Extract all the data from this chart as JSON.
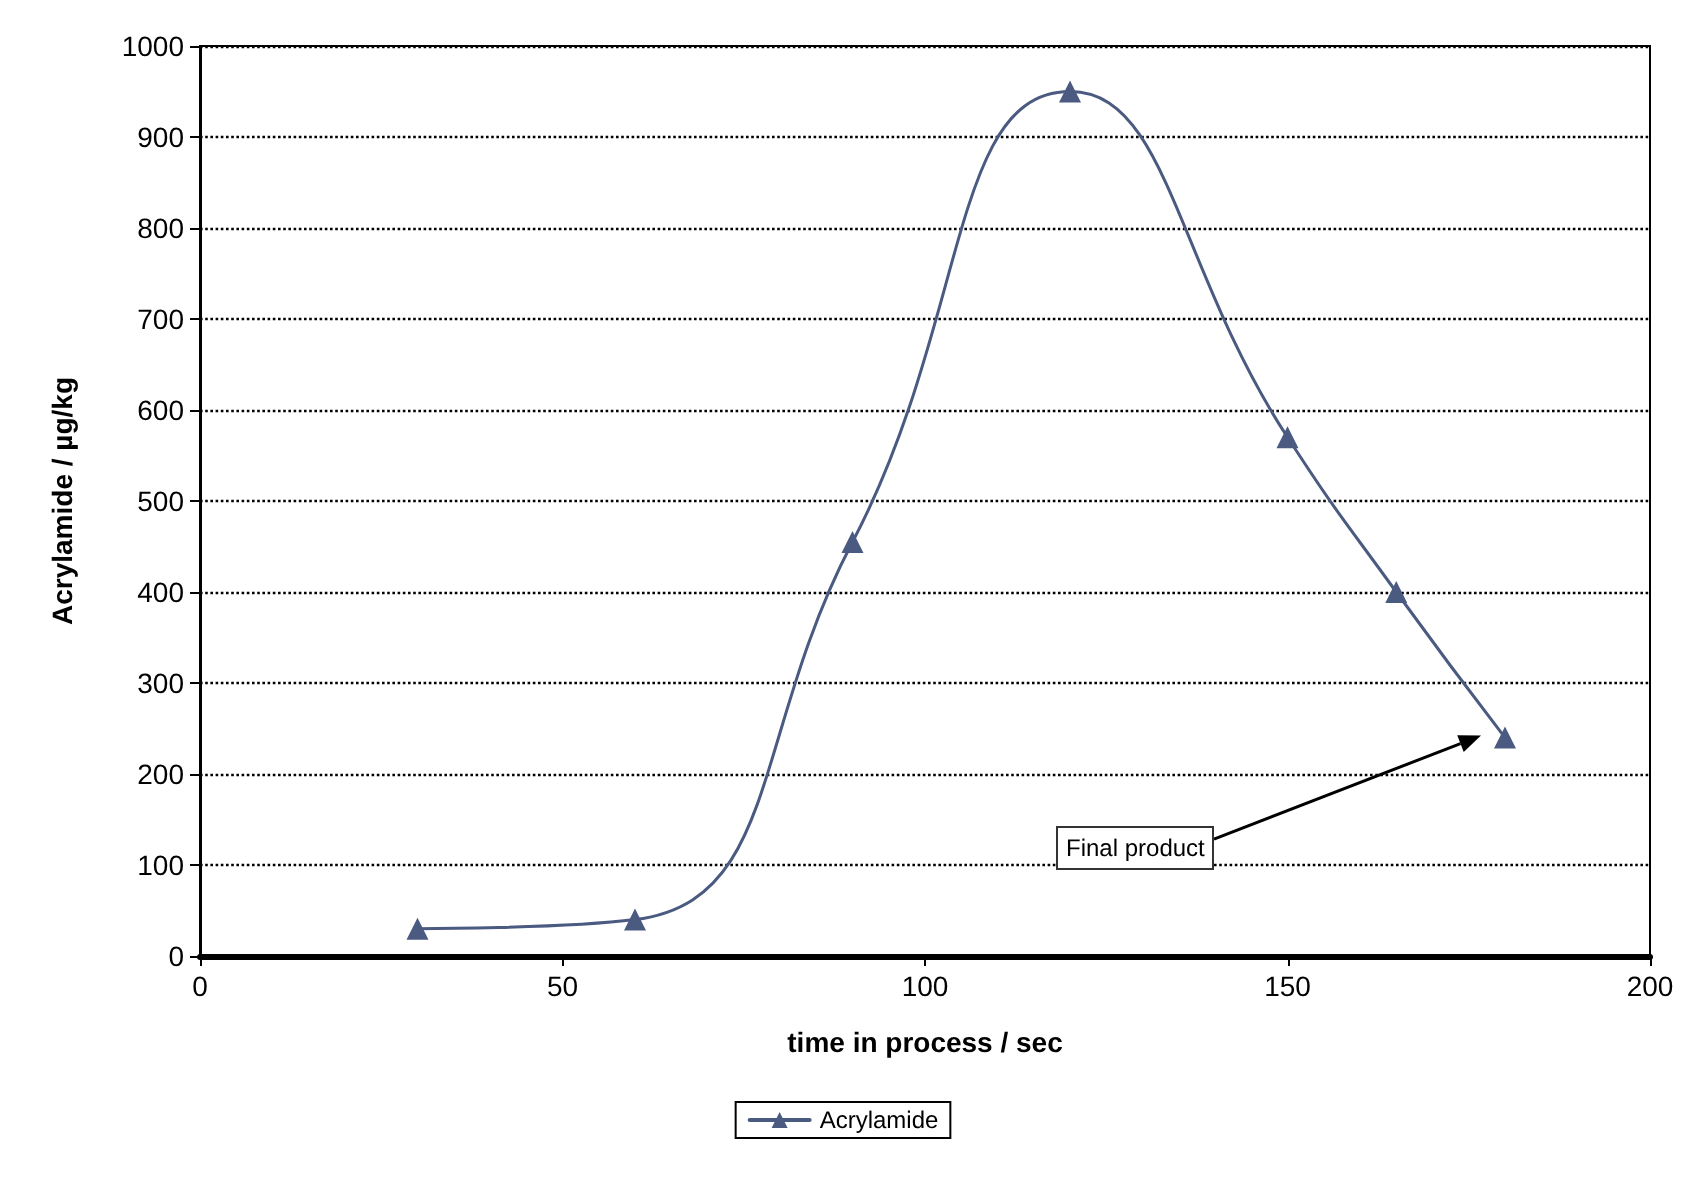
{
  "chart_data": {
    "type": "line",
    "xlabel": "time in process / sec",
    "ylabel": "Acrylamide / µg/kg",
    "x": [
      30,
      60,
      90,
      120,
      150,
      165,
      180
    ],
    "series": [
      {
        "name": "Acrylamide",
        "color": "#4a5a80",
        "values": [
          30,
          40,
          455,
          950,
          570,
          400,
          240
        ]
      }
    ],
    "xlim": [
      0,
      200
    ],
    "xticks": [
      0,
      50,
      100,
      150,
      200
    ],
    "ylim": [
      0,
      1000
    ],
    "yticks": [
      0,
      100,
      200,
      300,
      400,
      500,
      600,
      700,
      800,
      900,
      1000
    ],
    "grid": "y",
    "legend": "bottom",
    "marker": "triangle",
    "line_style": "solid",
    "annotations": [
      "Final product"
    ]
  }
}
